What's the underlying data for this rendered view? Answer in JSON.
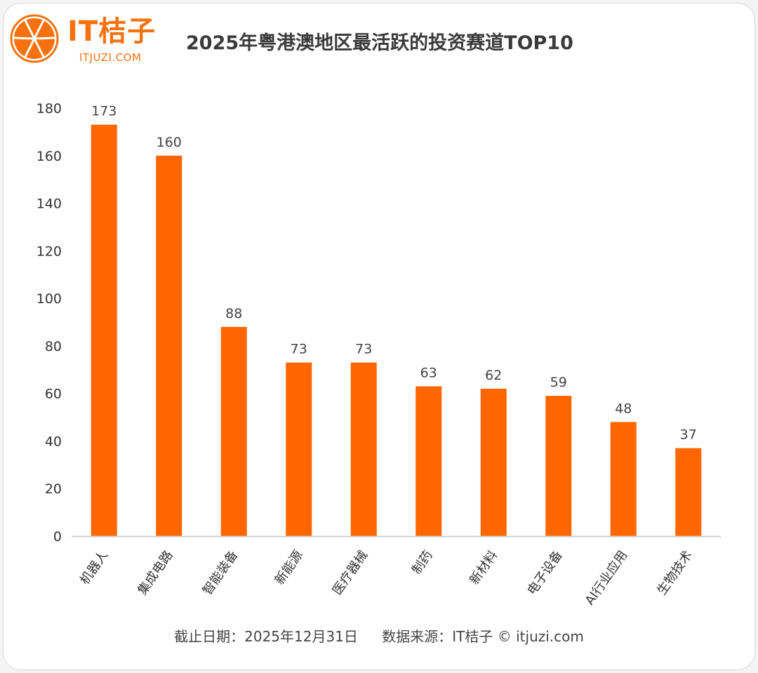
{
  "brand": {
    "name": "IT桔子",
    "url": "ITJUZI.COM",
    "color": "#f7720f"
  },
  "footer": {
    "date": "截止日期：2025年12月31日",
    "source": "数据来源：IT桔子 © itjuzi.com"
  },
  "chart_data": {
    "type": "bar",
    "title": "2025年粤港澳地区最活跃的投资赛道TOP10",
    "categories": [
      "机器人",
      "集成电路",
      "智能装备",
      "新能源",
      "医疗器械",
      "制药",
      "新材料",
      "电子设备",
      "AI行业应用",
      "生物技术"
    ],
    "values": [
      173,
      160,
      88,
      73,
      73,
      63,
      62,
      59,
      48,
      37
    ],
    "value_labels": [
      "173",
      "160",
      "88",
      "73",
      "73",
      "63",
      "62",
      "59",
      "48",
      "37"
    ],
    "ylim": [
      0,
      180
    ],
    "yticks": [
      "0",
      "20",
      "40",
      "60",
      "80",
      "100",
      "120",
      "140",
      "160",
      "180"
    ],
    "grid": false,
    "bar_color": "#ff6600",
    "xlabel": "",
    "ylabel": ""
  }
}
